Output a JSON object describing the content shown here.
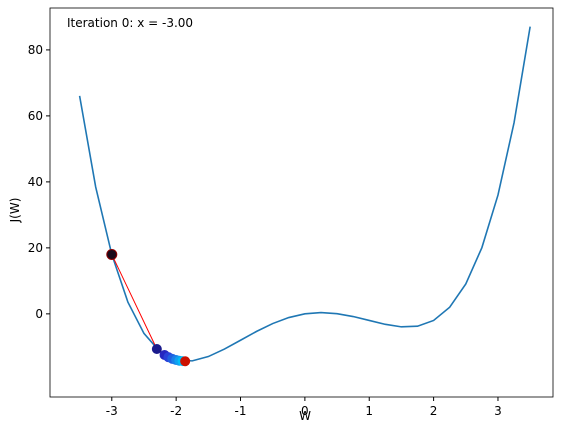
{
  "chart_data": {
    "type": "line",
    "annotation": "Iteration 0: x = -3.00",
    "xlabel": "W",
    "ylabel": "J(W)",
    "x": [
      -3.5,
      -3.25,
      -3,
      -2.75,
      -2.5,
      -2.25,
      -2,
      -1.75,
      -1.5,
      -1.25,
      -1,
      -0.75,
      -0.5,
      -0.25,
      0,
      0.25,
      0.5,
      0.75,
      1,
      1.25,
      1.5,
      1.75,
      2,
      2.25,
      2.5,
      2.75,
      3,
      3.25,
      3.5
    ],
    "values": [
      66.06,
      38.44,
      18,
      3.57,
      -5.94,
      -11.5,
      -14,
      -14.25,
      -12.94,
      -10.68,
      -8,
      -5.31,
      -2.94,
      -1.12,
      0,
      0.38,
      0.06,
      -0.81,
      -2,
      -3.18,
      -3.94,
      -3.75,
      -2,
      2.0,
      9.06,
      20.06,
      36,
      57.94,
      87.06
    ],
    "color": "#1f77b4",
    "points": {
      "x": [
        -3,
        -2.3,
        -2.18,
        -2.12,
        -2.06,
        -2.0,
        -1.95,
        -1.9,
        -1.86
      ],
      "values": [
        18,
        -10.66,
        -12.46,
        -13.13,
        -13.63,
        -14,
        -14.21,
        -14.33,
        -14.37
      ],
      "colors": [
        "#1a0a1a",
        "#1a1a8c",
        "#2626c0",
        "#2a40d8",
        "#2060e0",
        "#1a80e8",
        "#10a0f0",
        "#00c0f8",
        "#cc1100"
      ],
      "line_color": "#ff0000"
    },
    "xlim": [
      -3.96,
      3.855
    ],
    "ylim": [
      -25.2,
      92.7
    ],
    "xticks": [
      -3,
      -2,
      -1,
      0,
      1,
      2,
      3
    ],
    "yticks": [
      0,
      20,
      40,
      60,
      80
    ]
  }
}
